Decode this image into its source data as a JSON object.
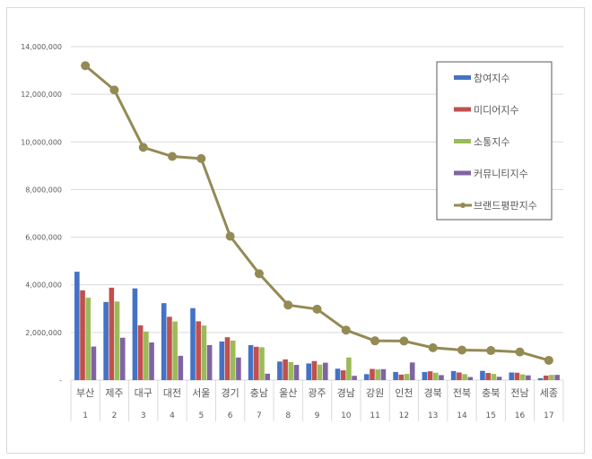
{
  "chart_data": {
    "type": "bar",
    "title": "",
    "xlabel": "",
    "ylabel": "",
    "ylim": [
      0,
      14000000
    ],
    "yticks": [
      "-",
      "2,000,000",
      "4,000,000",
      "6,000,000",
      "8,000,000",
      "10,000,000",
      "12,000,000",
      "14,000,000"
    ],
    "grid": true,
    "legend_position": "top-right",
    "categories": [
      "부산",
      "제주",
      "대구",
      "대전",
      "서울",
      "경기",
      "충남",
      "울산",
      "광주",
      "경남",
      "강원",
      "인천",
      "경북",
      "전북",
      "충북",
      "전남",
      "세종"
    ],
    "ranks": [
      "1",
      "2",
      "3",
      "4",
      "5",
      "6",
      "7",
      "8",
      "9",
      "10",
      "11",
      "12",
      "13",
      "14",
      "15",
      "16",
      "17"
    ],
    "series": [
      {
        "name": "참여지수",
        "type": "bar",
        "color": "#4472c4",
        "values": [
          4550000,
          3280000,
          3850000,
          3230000,
          3020000,
          1620000,
          1470000,
          780000,
          700000,
          480000,
          250000,
          340000,
          340000,
          380000,
          390000,
          320000,
          80000
        ]
      },
      {
        "name": "미디어지수",
        "type": "bar",
        "color": "#c0504d",
        "values": [
          3770000,
          3880000,
          2300000,
          2660000,
          2470000,
          1800000,
          1400000,
          870000,
          800000,
          410000,
          470000,
          230000,
          370000,
          320000,
          300000,
          310000,
          190000
        ]
      },
      {
        "name": "소통지수",
        "type": "bar",
        "color": "#9bbb59",
        "values": [
          3460000,
          3300000,
          2040000,
          2460000,
          2290000,
          1660000,
          1380000,
          760000,
          650000,
          950000,
          450000,
          260000,
          310000,
          250000,
          260000,
          240000,
          220000
        ]
      },
      {
        "name": "커뮤니티지수",
        "type": "bar",
        "color": "#8064a2",
        "values": [
          1410000,
          1780000,
          1580000,
          1020000,
          1470000,
          950000,
          270000,
          640000,
          730000,
          180000,
          460000,
          740000,
          210000,
          130000,
          140000,
          200000,
          220000
        ]
      },
      {
        "name": "브랜드평판지수",
        "type": "line",
        "color": "#948a54",
        "values": [
          13200000,
          12180000,
          9770000,
          9390000,
          9300000,
          6040000,
          4470000,
          3150000,
          2980000,
          2100000,
          1650000,
          1640000,
          1360000,
          1260000,
          1240000,
          1180000,
          830000
        ]
      }
    ]
  }
}
